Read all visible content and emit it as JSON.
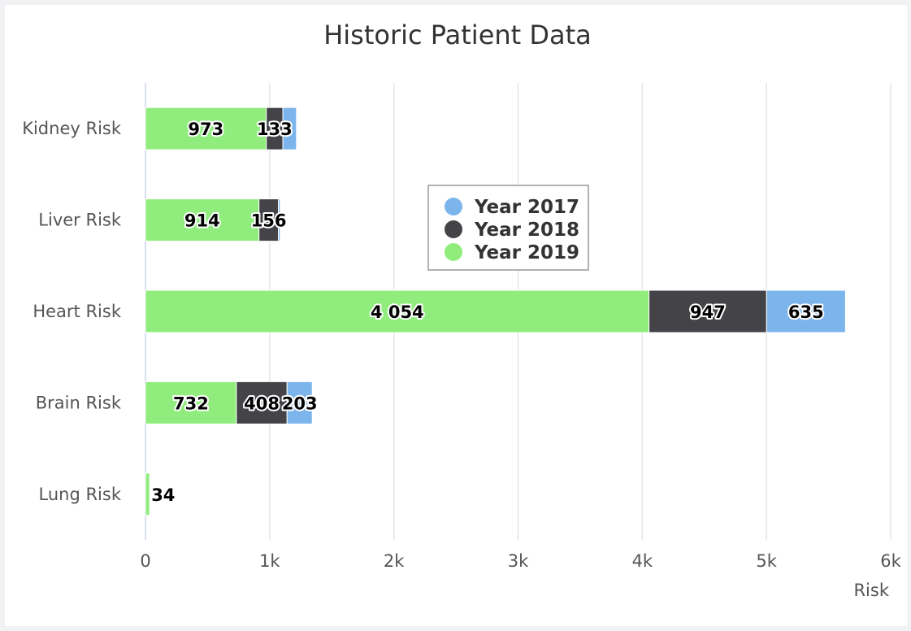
{
  "chart_data": {
    "type": "bar",
    "orientation": "horizontal",
    "stacked": true,
    "title": "Historic Patient Data",
    "categories": [
      "Kidney Risk",
      "Liver Risk",
      "Heart Risk",
      "Brain Risk",
      "Lung Risk"
    ],
    "series": [
      {
        "name": "Year 2017",
        "color": "#7cb5ec",
        "values": [
          110,
          15,
          635,
          203,
          0
        ],
        "labels": [
          "",
          "",
          "635",
          "203",
          ""
        ]
      },
      {
        "name": "Year 2018",
        "color": "#434348",
        "values": [
          133,
          156,
          947,
          408,
          0
        ],
        "labels": [
          "133",
          "156",
          "947",
          "408",
          ""
        ]
      },
      {
        "name": "Year 2019",
        "color": "#90ed7d",
        "values": [
          973,
          914,
          4054,
          732,
          34
        ],
        "labels": [
          "973",
          "914",
          "4 054",
          "732",
          "34"
        ]
      }
    ],
    "xlabel": "Risk",
    "xlim": [
      0,
      6000
    ],
    "ticks": [
      0,
      1000,
      2000,
      3000,
      4000,
      5000,
      6000
    ],
    "tick_labels": [
      "0",
      "1k",
      "2k",
      "3k",
      "4k",
      "5k",
      "6k"
    ],
    "grid": true,
    "legend_position": "center"
  }
}
